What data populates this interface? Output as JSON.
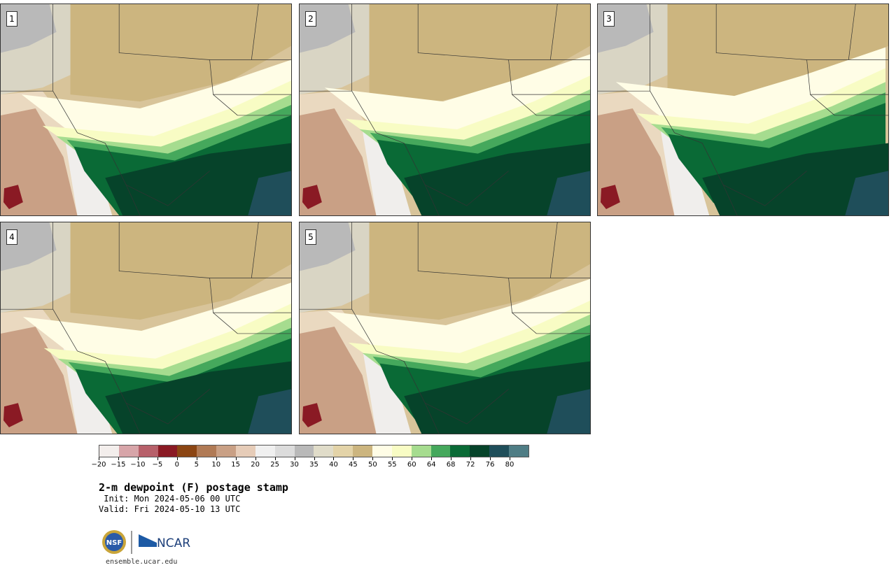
{
  "panels": [
    {
      "label": "1"
    },
    {
      "label": "2"
    },
    {
      "label": "3"
    },
    {
      "label": "4"
    },
    {
      "label": "5"
    }
  ],
  "colorbar": {
    "colors": [
      "#f3eeec",
      "#d7a5a9",
      "#b7606a",
      "#8a1a24",
      "#8b4513",
      "#b07a55",
      "#c9a085",
      "#e6ccb8",
      "#f0f0f0",
      "#dcdcdc",
      "#b9b9b9",
      "#e0dcc9",
      "#e3d3a8",
      "#ccb57f",
      "#fffde6",
      "#f8fcc4",
      "#a6dc8f",
      "#45a85c",
      "#0a6a36",
      "#06432a",
      "#1f4e5a",
      "#4f7d85"
    ],
    "ticks": [
      "−20",
      "−15",
      "−10",
      "−5",
      "0",
      "5",
      "10",
      "15",
      "20",
      "25",
      "30",
      "35",
      "40",
      "45",
      "50",
      "55",
      "60",
      "64",
      "68",
      "72",
      "76",
      "80"
    ]
  },
  "title": "2-m dewpoint (F) postage stamp",
  "init": " Init: Mon 2024-05-06 00 UTC",
  "valid": "Valid: Fri 2024-05-10 13 UTC",
  "logo": {
    "nsf": "NSF",
    "ncar": "NCAR"
  },
  "site": "ensemble.ucar.edu"
}
